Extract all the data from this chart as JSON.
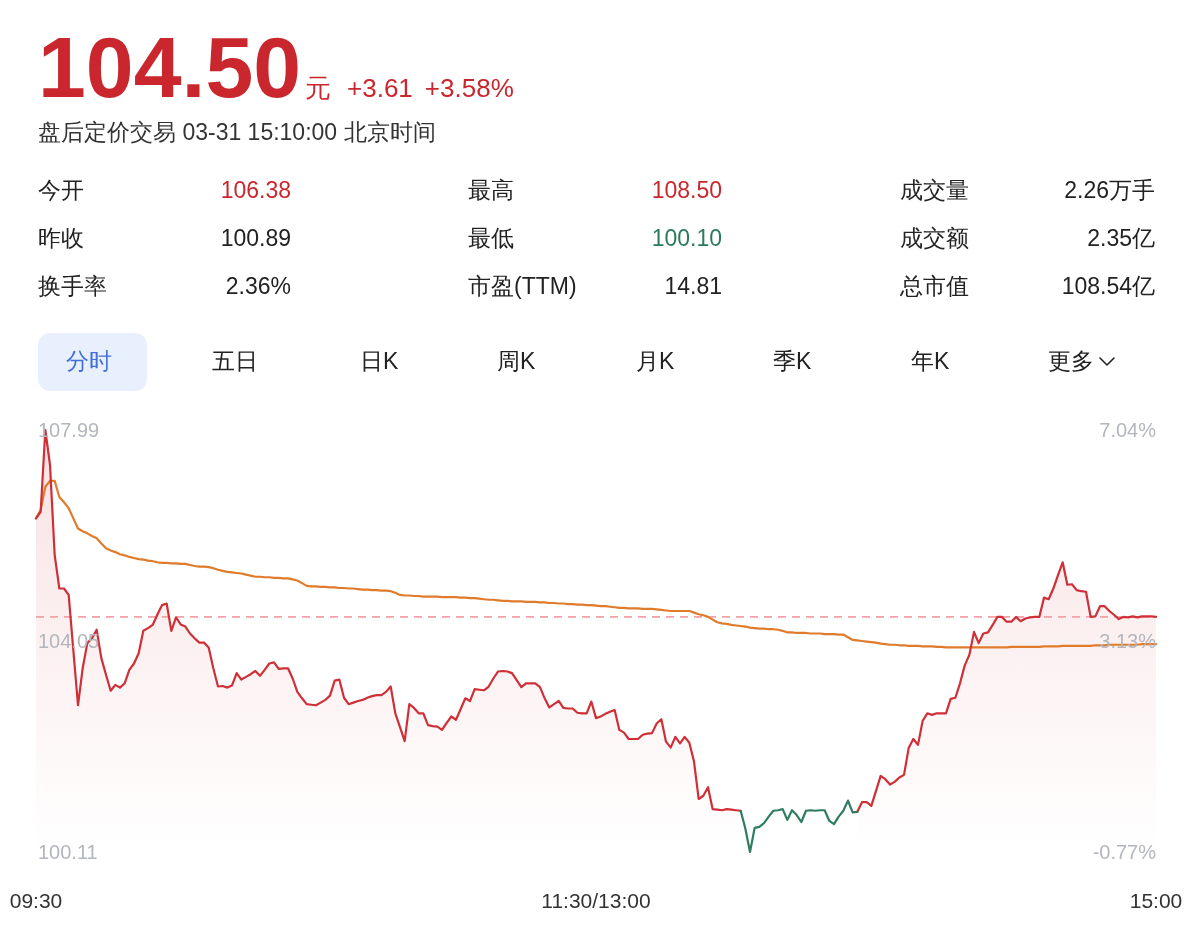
{
  "chart_data": [
    {
      "type": "other",
      "title": "104.50",
      "subtitle": "盘后定价交易 03-31 15:10:00 北京时间",
      "annotations": [
        "元",
        "+3.61",
        "+3.58%",
        "今开",
        "106.38",
        "最高",
        "108.50",
        "成交量",
        "2.26万手",
        "昨收",
        "100.89",
        "最低",
        "100.10",
        "成交额",
        "2.35亿",
        "换手率",
        "2.36%",
        "市盈(TTM)",
        "14.81",
        "总市值",
        "108.54亿",
        "分时",
        "五日",
        "日K",
        "周K",
        "月K",
        "季K",
        "年K",
        "更多"
      ]
    },
    {
      "type": "line",
      "categories": [
        "09:30",
        null,
        null,
        null,
        null,
        null,
        null,
        null,
        null,
        null,
        null,
        null,
        null,
        null,
        null,
        null,
        null,
        null,
        null,
        null,
        null,
        null,
        null,
        null,
        null,
        null,
        null,
        null,
        null,
        null,
        null,
        null,
        null,
        null,
        null,
        null,
        null,
        null,
        null,
        null,
        null,
        null,
        null,
        null,
        null,
        null,
        null,
        null,
        null,
        null,
        null,
        null,
        null,
        null,
        null,
        null,
        null,
        null,
        null,
        null,
        null,
        null,
        null,
        null,
        null,
        null,
        null,
        null,
        null,
        null,
        null,
        null,
        null,
        null,
        null,
        null,
        null,
        null,
        null,
        null,
        null,
        null,
        null,
        null,
        null,
        null,
        null,
        null,
        null,
        null,
        null,
        null,
        null,
        null,
        null,
        null,
        null,
        null,
        null,
        null,
        null,
        null,
        null,
        null,
        null,
        null,
        null,
        null,
        null,
        null,
        null,
        null,
        null,
        null,
        null,
        null,
        null,
        null,
        null,
        null,
        "11:30/13:00",
        null,
        null,
        null,
        null,
        null,
        null,
        null,
        null,
        null,
        null,
        null,
        null,
        null,
        null,
        null,
        null,
        null,
        null,
        null,
        null,
        null,
        null,
        null,
        null,
        null,
        null,
        null,
        null,
        null,
        null,
        null,
        null,
        null,
        null,
        null,
        null,
        null,
        null,
        null,
        null,
        null,
        null,
        null,
        null,
        null,
        null,
        null,
        null,
        null,
        null,
        null,
        null,
        null,
        null,
        null,
        null,
        null,
        null,
        null,
        null,
        null,
        null,
        null,
        null,
        null,
        null,
        null,
        null,
        null,
        null,
        null,
        null,
        null,
        null,
        null,
        null,
        null,
        null,
        null,
        null,
        null,
        null,
        null,
        null,
        null,
        null,
        null,
        null,
        null,
        null,
        null,
        null,
        null,
        null,
        null,
        null,
        null,
        null,
        null,
        null,
        null,
        null,
        null,
        null,
        null,
        null,
        null,
        null,
        null,
        null,
        null,
        null,
        null,
        null,
        null,
        null,
        null,
        null,
        null,
        "15:00"
      ],
      "ylim": [
        100.11,
        107.99
      ],
      "yticks": [
        107.99,
        104.05,
        100.11
      ],
      "y2lim": [
        -0.77,
        7.04
      ],
      "y2ticks": [
        {
          "value": 7.04,
          "label": "7.04%"
        },
        {
          "value": 3.13,
          "label": "3.13%"
        },
        {
          "value": -0.77,
          "label": "-0.77%"
        }
      ],
      "ref_lines": [
        {
          "axis": "y",
          "value": 104.5,
          "color": "#f2a3a6",
          "line_style": "dashed"
        }
      ],
      "series": [
        {
          "type": "line",
          "color": "#e07b2c",
          "values": [
            106.34,
            106.5,
            106.93,
            107.04,
            107.04,
            106.74,
            106.64,
            106.53,
            106.34,
            106.15,
            106.1,
            106.06,
            106.01,
            105.97,
            105.87,
            105.78,
            105.74,
            105.71,
            105.67,
            105.65,
            105.62,
            105.6,
            105.58,
            105.57,
            105.55,
            105.54,
            105.52,
            105.51,
            105.51,
            105.5,
            105.5,
            105.49,
            105.49,
            105.47,
            105.45,
            105.44,
            105.44,
            105.43,
            105.41,
            105.38,
            105.36,
            105.34,
            105.33,
            105.32,
            105.31,
            105.29,
            105.27,
            105.25,
            105.25,
            105.24,
            105.24,
            105.23,
            105.23,
            105.22,
            105.22,
            105.2,
            105.18,
            105.13,
            105.08,
            105.07,
            105.07,
            105.06,
            105.06,
            105.05,
            105.05,
            105.04,
            105.04,
            105.03,
            105.03,
            105.02,
            105.01,
            105.01,
            105.0,
            105.0,
            104.99,
            104.99,
            104.98,
            104.95,
            104.91,
            104.9,
            104.9,
            104.89,
            104.89,
            104.88,
            104.88,
            104.88,
            104.88,
            104.87,
            104.87,
            104.87,
            104.87,
            104.86,
            104.86,
            104.85,
            104.85,
            104.84,
            104.83,
            104.82,
            104.82,
            104.81,
            104.8,
            104.8,
            104.79,
            104.79,
            104.79,
            104.78,
            104.78,
            104.78,
            104.77,
            104.77,
            104.76,
            104.76,
            104.75,
            104.75,
            104.74,
            104.74,
            104.73,
            104.73,
            104.72,
            104.72,
            104.71,
            104.7,
            104.7,
            104.69,
            104.68,
            104.67,
            104.67,
            104.66,
            104.66,
            104.66,
            104.65,
            104.65,
            104.65,
            104.64,
            104.63,
            104.62,
            104.61,
            104.61,
            104.61,
            104.61,
            104.61,
            104.58,
            104.55,
            104.53,
            104.5,
            104.45,
            104.4,
            104.38,
            104.37,
            104.35,
            104.34,
            104.33,
            104.32,
            104.3,
            104.29,
            104.28,
            104.28,
            104.27,
            104.27,
            104.26,
            104.24,
            104.21,
            104.21,
            104.2,
            104.2,
            104.2,
            104.19,
            104.19,
            104.19,
            104.18,
            104.18,
            104.18,
            104.17,
            104.17,
            104.12,
            104.07,
            104.06,
            104.05,
            104.04,
            104.03,
            104.02,
            104.0,
            103.99,
            103.98,
            103.98,
            103.97,
            103.97,
            103.96,
            103.96,
            103.96,
            103.95,
            103.95,
            103.95,
            103.94,
            103.94,
            103.93,
            103.93,
            103.93,
            103.93,
            103.93,
            103.93,
            103.93,
            103.93,
            103.93,
            103.93,
            103.93,
            103.93,
            103.93,
            103.93,
            103.94,
            103.94,
            103.94,
            103.94,
            103.94,
            103.94,
            103.94,
            103.95,
            103.95,
            103.95,
            103.95,
            103.96,
            103.96,
            103.96,
            103.96,
            103.96,
            103.96,
            103.96,
            103.97,
            103.97,
            103.97,
            103.98,
            103.98,
            103.98,
            103.98,
            103.98,
            103.98,
            103.98,
            103.99,
            103.99,
            103.99,
            103.99
          ]
        },
        {
          "type": "area",
          "color": "#cf2f37",
          "values": [
            106.34,
            106.46,
            107.99,
            107.34,
            105.66,
            105.03,
            105.03,
            104.91,
            103.88,
            102.85,
            103.54,
            104.01,
            104.1,
            104.26,
            103.73,
            103.42,
            103.12,
            103.23,
            103.18,
            103.26,
            103.51,
            103.63,
            103.82,
            104.24,
            104.29,
            104.35,
            104.54,
            104.72,
            104.75,
            104.24,
            104.49,
            104.36,
            104.32,
            104.19,
            104.1,
            104.02,
            104.02,
            103.93,
            103.54,
            103.2,
            103.21,
            103.18,
            103.22,
            103.45,
            103.33,
            103.38,
            103.43,
            103.49,
            103.4,
            103.51,
            103.63,
            103.65,
            103.53,
            103.54,
            103.54,
            103.35,
            103.1,
            102.98,
            102.87,
            102.86,
            102.85,
            102.9,
            102.95,
            103.03,
            103.31,
            103.33,
            102.99,
            102.87,
            102.9,
            102.93,
            102.95,
            102.99,
            103.02,
            103.04,
            103.04,
            103.1,
            103.2,
            102.7,
            102.44,
            102.18,
            102.87,
            102.8,
            102.7,
            102.7,
            102.48,
            102.46,
            102.45,
            102.39,
            102.52,
            102.64,
            102.58,
            102.78,
            102.98,
            102.93,
            103.15,
            103.14,
            103.13,
            103.2,
            103.35,
            103.48,
            103.49,
            103.48,
            103.45,
            103.32,
            103.19,
            103.26,
            103.26,
            103.26,
            103.19,
            102.98,
            102.81,
            102.87,
            102.93,
            102.8,
            102.79,
            102.79,
            102.71,
            102.7,
            102.7,
            102.92,
            102.61,
            102.64,
            102.69,
            102.73,
            102.76,
            102.39,
            102.34,
            102.22,
            102.22,
            102.22,
            102.3,
            102.32,
            102.33,
            102.51,
            102.59,
            102.17,
            102.06,
            102.26,
            102.14,
            102.26,
            102.15,
            101.8,
            101.1,
            101.16,
            101.32,
            100.91,
            100.9,
            100.89,
            100.91,
            100.9,
            100.89,
            100.88,
            null,
            null,
            null,
            null,
            null,
            null,
            null,
            null,
            null,
            null,
            null,
            null,
            null,
            null,
            null,
            null,
            null,
            null,
            null,
            null,
            null,
            null,
            null,
            null,
            100.86,
            101.04,
            101.04,
            100.97,
            101.25,
            101.53,
            101.47,
            101.37,
            101.42,
            101.5,
            101.55,
            102.05,
            102.22,
            102.11,
            102.56,
            102.7,
            102.67,
            102.7,
            102.7,
            102.7,
            102.97,
            102.99,
            103.26,
            103.59,
            103.79,
            104.22,
            104.01,
            104.19,
            104.21,
            104.35,
            104.5,
            104.5,
            104.41,
            104.41,
            104.5,
            104.42,
            104.47,
            104.49,
            104.5,
            104.5,
            104.86,
            104.83,
            105.03,
            105.28,
            105.52,
            105.1,
            105.11,
            105.0,
            104.98,
            104.97,
            104.5,
            104.51,
            104.7,
            104.7,
            104.61,
            104.54,
            104.46,
            104.5,
            104.49,
            104.51,
            104.49,
            104.51,
            104.51,
            104.51,
            104.5
          ]
        },
        {
          "type": "line",
          "color": "#2f7d5e",
          "values": [
            null,
            null,
            null,
            null,
            null,
            null,
            null,
            null,
            null,
            null,
            null,
            null,
            null,
            null,
            null,
            null,
            null,
            null,
            null,
            null,
            null,
            null,
            null,
            null,
            null,
            null,
            null,
            null,
            null,
            null,
            null,
            null,
            null,
            null,
            null,
            null,
            null,
            null,
            null,
            null,
            null,
            null,
            null,
            null,
            null,
            null,
            null,
            null,
            null,
            null,
            null,
            null,
            null,
            null,
            null,
            null,
            null,
            null,
            null,
            null,
            null,
            null,
            null,
            null,
            null,
            null,
            null,
            null,
            null,
            null,
            null,
            null,
            null,
            null,
            null,
            null,
            null,
            null,
            null,
            null,
            null,
            null,
            null,
            null,
            null,
            null,
            null,
            null,
            null,
            null,
            null,
            null,
            null,
            null,
            null,
            null,
            null,
            null,
            null,
            null,
            null,
            null,
            null,
            null,
            null,
            null,
            null,
            null,
            null,
            null,
            null,
            null,
            null,
            null,
            null,
            null,
            null,
            null,
            null,
            null,
            null,
            null,
            null,
            null,
            null,
            null,
            null,
            null,
            null,
            null,
            null,
            null,
            null,
            null,
            null,
            null,
            null,
            null,
            null,
            null,
            null,
            null,
            null,
            null,
            null,
            null,
            null,
            null,
            null,
            null,
            null,
            100.88,
            100.55,
            100.11,
            100.56,
            100.58,
            100.65,
            100.77,
            100.88,
            100.89,
            100.91,
            100.71,
            100.89,
            100.8,
            100.67,
            100.88,
            100.89,
            100.88,
            100.89,
            100.89,
            100.69,
            100.63,
            100.77,
            100.88,
            101.07,
            100.85,
            100.86,
            null,
            null,
            null,
            null,
            null,
            null,
            null,
            null,
            null,
            null,
            null,
            null,
            null,
            null,
            null,
            null,
            null,
            null,
            null,
            null,
            null,
            null,
            null,
            null,
            null,
            null,
            null,
            null,
            null,
            null,
            null,
            null,
            null,
            null,
            null,
            null,
            null,
            null,
            null,
            null,
            null,
            null,
            null,
            null,
            null,
            null,
            null,
            null,
            null,
            null,
            null,
            null,
            null,
            null,
            null,
            null,
            null,
            null,
            null,
            null,
            null,
            null,
            null,
            null
          ]
        }
      ]
    }
  ]
}
